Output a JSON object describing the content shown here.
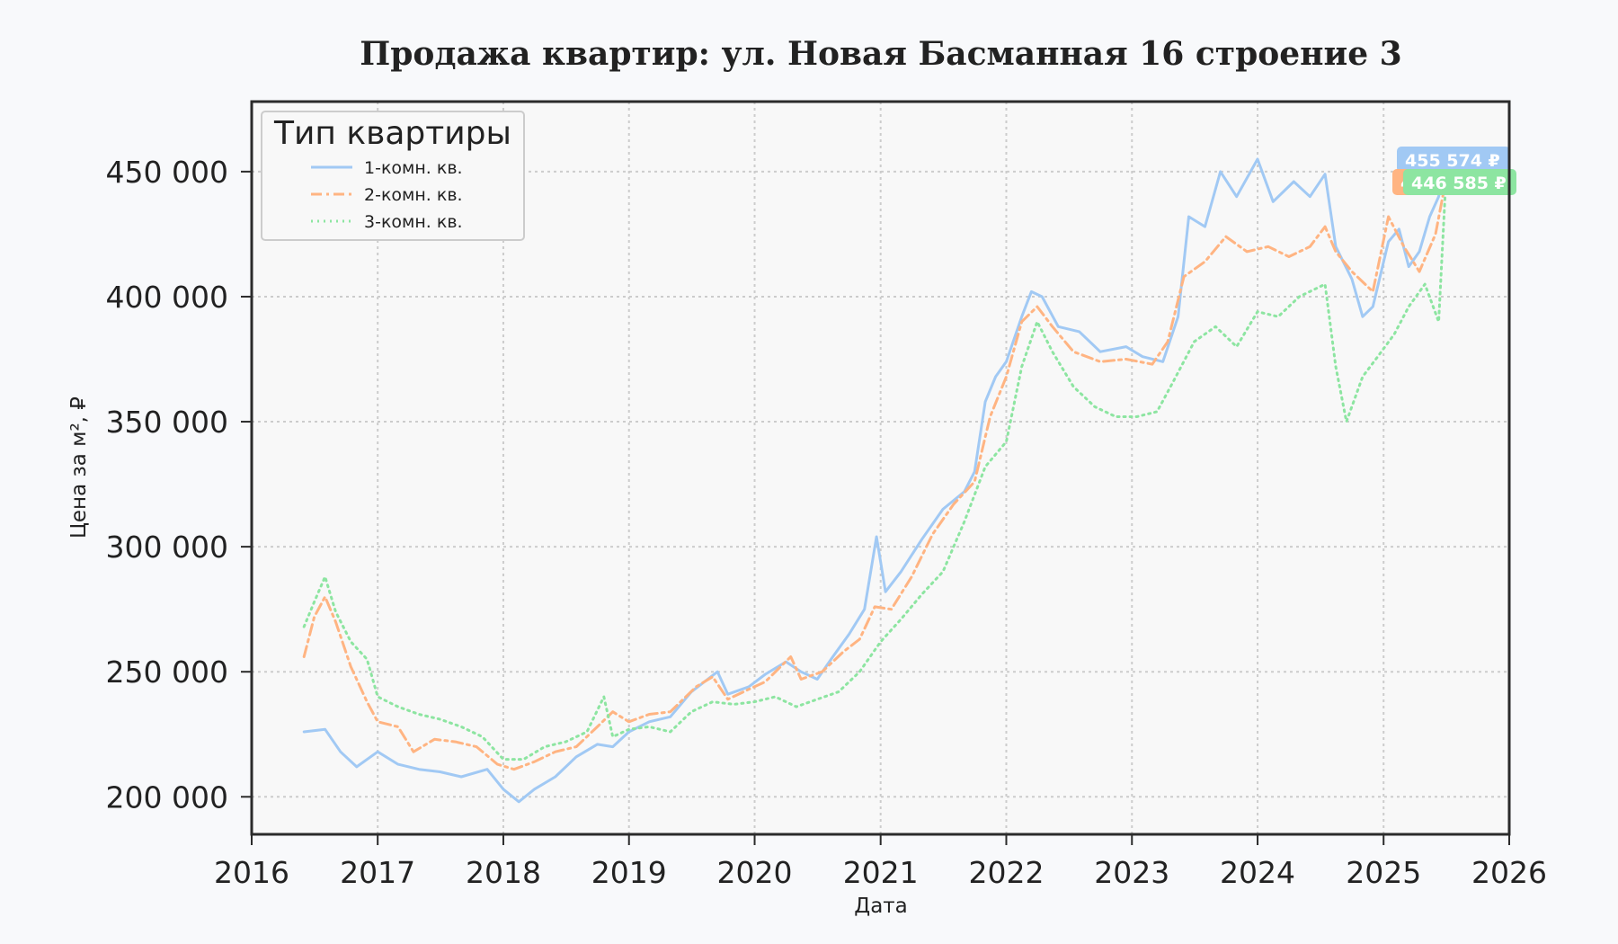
{
  "chart_data": {
    "type": "line",
    "title": "Продажа квартир: ул. Новая Басманная 16 строение 3",
    "xlabel": "Дата",
    "ylabel": "Цена за м², ₽",
    "xlim": [
      "2016-01-01",
      "2026-01-01"
    ],
    "ylim": [
      185000,
      478000
    ],
    "x_ticks": [
      "2016",
      "2017",
      "2018",
      "2019",
      "2020",
      "2021",
      "2022",
      "2023",
      "2024",
      "2025",
      "2026"
    ],
    "y_ticks": [
      200000,
      250000,
      300000,
      350000,
      400000,
      450000
    ],
    "y_tick_labels": [
      "200 000",
      "250 000",
      "300 000",
      "350 000",
      "400 000",
      "450 000"
    ],
    "grid": true,
    "legend": {
      "title": "Тип квартиры",
      "placement": "top-left"
    },
    "series": [
      {
        "name": "1-комн. кв.",
        "color": "#a1c9f4",
        "dash": "solid",
        "points": [
          [
            "2016-06-01",
            226000
          ],
          [
            "2016-08-01",
            227000
          ],
          [
            "2016-09-15",
            218000
          ],
          [
            "2016-11-01",
            212000
          ],
          [
            "2017-01-01",
            218000
          ],
          [
            "2017-03-01",
            213000
          ],
          [
            "2017-05-01",
            211000
          ],
          [
            "2017-07-01",
            210000
          ],
          [
            "2017-09-01",
            208000
          ],
          [
            "2017-11-15",
            211000
          ],
          [
            "2018-01-01",
            203000
          ],
          [
            "2018-02-15",
            198000
          ],
          [
            "2018-04-01",
            203000
          ],
          [
            "2018-06-01",
            208000
          ],
          [
            "2018-08-01",
            216000
          ],
          [
            "2018-10-01",
            221000
          ],
          [
            "2018-11-15",
            220000
          ],
          [
            "2019-01-01",
            226000
          ],
          [
            "2019-03-01",
            230000
          ],
          [
            "2019-05-01",
            232000
          ],
          [
            "2019-07-01",
            242000
          ],
          [
            "2019-09-15",
            250000
          ],
          [
            "2019-10-15",
            241000
          ],
          [
            "2019-12-15",
            244000
          ],
          [
            "2020-02-01",
            249000
          ],
          [
            "2020-04-01",
            254000
          ],
          [
            "2020-05-15",
            250000
          ],
          [
            "2020-07-01",
            247000
          ],
          [
            "2020-08-15",
            256000
          ],
          [
            "2020-10-01",
            265000
          ],
          [
            "2020-11-15",
            275000
          ],
          [
            "2020-12-20",
            304000
          ],
          [
            "2021-01-15",
            282000
          ],
          [
            "2021-03-01",
            290000
          ],
          [
            "2021-05-01",
            303000
          ],
          [
            "2021-07-01",
            315000
          ],
          [
            "2021-09-01",
            322000
          ],
          [
            "2021-10-01",
            330000
          ],
          [
            "2021-11-01",
            358000
          ],
          [
            "2021-12-01",
            368000
          ],
          [
            "2022-01-01",
            374000
          ],
          [
            "2022-02-15",
            392000
          ],
          [
            "2022-03-15",
            402000
          ],
          [
            "2022-04-15",
            400000
          ],
          [
            "2022-06-01",
            388000
          ],
          [
            "2022-08-01",
            386000
          ],
          [
            "2022-10-01",
            378000
          ],
          [
            "2022-12-15",
            380000
          ],
          [
            "2023-02-01",
            376000
          ],
          [
            "2023-04-01",
            374000
          ],
          [
            "2023-05-15",
            392000
          ],
          [
            "2023-06-15",
            432000
          ],
          [
            "2023-08-01",
            428000
          ],
          [
            "2023-09-15",
            450000
          ],
          [
            "2023-11-01",
            440000
          ],
          [
            "2024-01-01",
            455000
          ],
          [
            "2024-02-15",
            438000
          ],
          [
            "2024-04-15",
            446000
          ],
          [
            "2024-06-01",
            440000
          ],
          [
            "2024-07-15",
            449000
          ],
          [
            "2024-08-15",
            420000
          ],
          [
            "2024-10-01",
            407000
          ],
          [
            "2024-11-01",
            392000
          ],
          [
            "2024-12-01",
            396000
          ],
          [
            "2025-01-15",
            422000
          ],
          [
            "2025-02-15",
            427000
          ],
          [
            "2025-03-15",
            412000
          ],
          [
            "2025-04-15",
            418000
          ],
          [
            "2025-05-15",
            432000
          ],
          [
            "2025-06-10",
            440000
          ],
          [
            "2025-07-01",
            455574
          ]
        ]
      },
      {
        "name": "2-комн. кв.",
        "color": "#ffb482",
        "dash": "dashdot",
        "points": [
          [
            "2016-06-01",
            256000
          ],
          [
            "2016-07-01",
            272000
          ],
          [
            "2016-08-01",
            280000
          ],
          [
            "2016-09-01",
            270000
          ],
          [
            "2016-10-15",
            252000
          ],
          [
            "2016-12-01",
            238000
          ],
          [
            "2017-01-01",
            230000
          ],
          [
            "2017-03-01",
            228000
          ],
          [
            "2017-04-15",
            218000
          ],
          [
            "2017-06-15",
            223000
          ],
          [
            "2017-08-15",
            222000
          ],
          [
            "2017-10-15",
            220000
          ],
          [
            "2017-12-15",
            213000
          ],
          [
            "2018-02-01",
            211000
          ],
          [
            "2018-04-01",
            214000
          ],
          [
            "2018-06-01",
            218000
          ],
          [
            "2018-08-01",
            220000
          ],
          [
            "2018-10-01",
            228000
          ],
          [
            "2018-11-15",
            234000
          ],
          [
            "2019-01-01",
            230000
          ],
          [
            "2019-03-01",
            233000
          ],
          [
            "2019-05-01",
            234000
          ],
          [
            "2019-07-15",
            244000
          ],
          [
            "2019-09-01",
            248000
          ],
          [
            "2019-10-15",
            239000
          ],
          [
            "2019-12-15",
            243000
          ],
          [
            "2020-02-01",
            246000
          ],
          [
            "2020-04-15",
            256000
          ],
          [
            "2020-05-15",
            247000
          ],
          [
            "2020-07-15",
            250000
          ],
          [
            "2020-09-15",
            258000
          ],
          [
            "2020-11-01",
            263000
          ],
          [
            "2020-12-15",
            276000
          ],
          [
            "2021-02-01",
            275000
          ],
          [
            "2021-04-01",
            288000
          ],
          [
            "2021-06-01",
            305000
          ],
          [
            "2021-08-01",
            317000
          ],
          [
            "2021-10-01",
            326000
          ],
          [
            "2021-11-15",
            352000
          ],
          [
            "2022-01-01",
            368000
          ],
          [
            "2022-02-15",
            390000
          ],
          [
            "2022-04-01",
            396000
          ],
          [
            "2022-05-15",
            388000
          ],
          [
            "2022-07-15",
            378000
          ],
          [
            "2022-10-01",
            374000
          ],
          [
            "2022-12-15",
            375000
          ],
          [
            "2023-03-01",
            373000
          ],
          [
            "2023-04-15",
            382000
          ],
          [
            "2023-06-01",
            408000
          ],
          [
            "2023-08-01",
            414000
          ],
          [
            "2023-10-01",
            424000
          ],
          [
            "2023-12-01",
            418000
          ],
          [
            "2024-02-01",
            420000
          ],
          [
            "2024-04-01",
            416000
          ],
          [
            "2024-06-01",
            420000
          ],
          [
            "2024-07-15",
            428000
          ],
          [
            "2024-08-15",
            418000
          ],
          [
            "2024-10-01",
            410000
          ],
          [
            "2024-12-01",
            402000
          ],
          [
            "2025-01-15",
            432000
          ],
          [
            "2025-03-01",
            420000
          ],
          [
            "2025-04-15",
            410000
          ],
          [
            "2025-06-01",
            425000
          ],
          [
            "2025-07-01",
            446585
          ]
        ]
      },
      {
        "name": "3-комн. кв.",
        "color": "#8de5a1",
        "dash": "dotted",
        "points": [
          [
            "2016-06-01",
            268000
          ],
          [
            "2016-07-01",
            278000
          ],
          [
            "2016-08-01",
            288000
          ],
          [
            "2016-09-01",
            274000
          ],
          [
            "2016-10-15",
            262000
          ],
          [
            "2016-12-01",
            255000
          ],
          [
            "2017-01-01",
            240000
          ],
          [
            "2017-03-01",
            236000
          ],
          [
            "2017-05-01",
            233000
          ],
          [
            "2017-07-01",
            231000
          ],
          [
            "2017-09-01",
            228000
          ],
          [
            "2017-11-01",
            224000
          ],
          [
            "2018-01-01",
            215000
          ],
          [
            "2018-03-01",
            215000
          ],
          [
            "2018-05-01",
            220000
          ],
          [
            "2018-07-01",
            222000
          ],
          [
            "2018-09-01",
            226000
          ],
          [
            "2018-10-20",
            240000
          ],
          [
            "2018-11-15",
            224000
          ],
          [
            "2019-01-01",
            227000
          ],
          [
            "2019-03-01",
            228000
          ],
          [
            "2019-05-01",
            226000
          ],
          [
            "2019-07-01",
            234000
          ],
          [
            "2019-09-01",
            238000
          ],
          [
            "2019-11-01",
            237000
          ],
          [
            "2020-01-01",
            238000
          ],
          [
            "2020-03-01",
            240000
          ],
          [
            "2020-05-01",
            236000
          ],
          [
            "2020-07-01",
            239000
          ],
          [
            "2020-09-01",
            242000
          ],
          [
            "2020-11-01",
            250000
          ],
          [
            "2021-01-01",
            262000
          ],
          [
            "2021-03-01",
            271000
          ],
          [
            "2021-05-01",
            281000
          ],
          [
            "2021-07-01",
            290000
          ],
          [
            "2021-09-01",
            310000
          ],
          [
            "2021-11-01",
            332000
          ],
          [
            "2022-01-01",
            342000
          ],
          [
            "2022-02-15",
            372000
          ],
          [
            "2022-04-01",
            390000
          ],
          [
            "2022-05-15",
            378000
          ],
          [
            "2022-07-15",
            364000
          ],
          [
            "2022-09-15",
            356000
          ],
          [
            "2022-11-15",
            352000
          ],
          [
            "2023-01-15",
            352000
          ],
          [
            "2023-03-15",
            354000
          ],
          [
            "2023-05-01",
            366000
          ],
          [
            "2023-07-01",
            382000
          ],
          [
            "2023-09-01",
            388000
          ],
          [
            "2023-11-01",
            380000
          ],
          [
            "2024-01-01",
            394000
          ],
          [
            "2024-03-01",
            392000
          ],
          [
            "2024-05-01",
            400000
          ],
          [
            "2024-07-15",
            405000
          ],
          [
            "2024-08-15",
            372000
          ],
          [
            "2024-09-15",
            350000
          ],
          [
            "2024-11-01",
            368000
          ],
          [
            "2024-12-15",
            376000
          ],
          [
            "2025-02-01",
            385000
          ],
          [
            "2025-03-15",
            396000
          ],
          [
            "2025-05-01",
            405000
          ],
          [
            "2025-06-10",
            390000
          ],
          [
            "2025-07-01",
            446585
          ]
        ]
      }
    ],
    "end_labels": [
      {
        "series": "1-комн. кв.",
        "text": "455 574 ₽",
        "color": "#a1c9f4"
      },
      {
        "series": "2-комн. кв.",
        "text": "446 585 ₽",
        "color": "#ffb482"
      },
      {
        "series": "3-комн. кв.",
        "text": "446 585 ₽",
        "color": "#8de5a1"
      }
    ]
  }
}
